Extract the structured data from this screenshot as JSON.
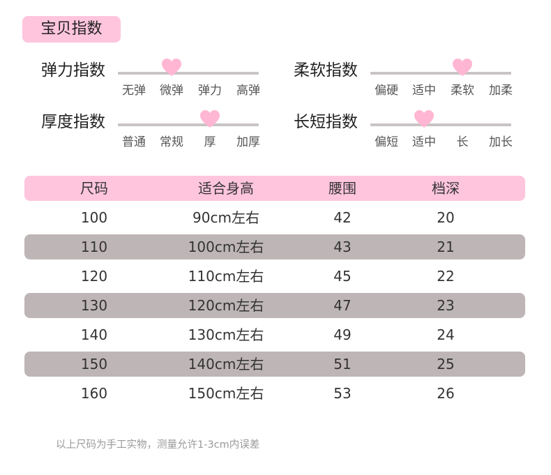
{
  "title": "宝贝指数",
  "indices": [
    {
      "label": "弹力指数",
      "options": [
        "无弹",
        "微弹",
        "弹力",
        "高弹"
      ],
      "selected": 1
    },
    {
      "label": "柔软指数",
      "options": [
        "偏硬",
        "适中",
        "柔软",
        "加柔"
      ],
      "selected": 2
    },
    {
      "label": "厚度指数",
      "options": [
        "普通",
        "常规",
        "厚",
        "加厚"
      ],
      "selected": 2
    },
    {
      "label": "长短指数",
      "options": [
        "偏短",
        "适中",
        "长",
        "加长"
      ],
      "selected": 1
    }
  ],
  "size_table": {
    "headers": [
      "尺码",
      "适合身高",
      "腰围",
      "档深"
    ],
    "rows": [
      [
        "100",
        "90cm左右",
        "42",
        "20"
      ],
      [
        "110",
        "100cm左右",
        "43",
        "21"
      ],
      [
        "120",
        "110cm左右",
        "45",
        "22"
      ],
      [
        "130",
        "120cm左右",
        "47",
        "23"
      ],
      [
        "140",
        "130cm左右",
        "49",
        "24"
      ],
      [
        "150",
        "140cm左右",
        "51",
        "25"
      ],
      [
        "160",
        "150cm左右",
        "53",
        "26"
      ]
    ]
  },
  "note": "以上尺码为手工实物，测量允许1-3cm内误差",
  "colors": {
    "accent_pink": "#ffc5dd",
    "heart_pink": "#ffb6d3",
    "row_shade": "#beb6b6",
    "track": "#c9c4c4"
  }
}
